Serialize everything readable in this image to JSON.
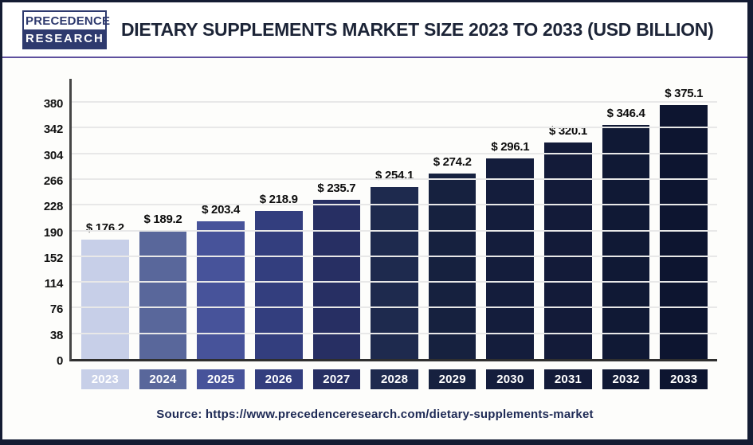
{
  "header": {
    "logo_line1": "PRECEDENCE",
    "logo_line2": "RESEARCH",
    "title": "DIETARY SUPPLEMENTS MARKET SIZE 2023 TO 2033 (USD BILLION)"
  },
  "footer": {
    "source": "Source: https://www.precedenceresearch.com/dietary-supplements-market"
  },
  "chart_data": {
    "type": "bar",
    "title": "Dietary Supplements Market Size 2023 to 2033 (USD Billion)",
    "categories": [
      "2023",
      "2024",
      "2025",
      "2026",
      "2027",
      "2028",
      "2029",
      "2030",
      "2031",
      "2032",
      "2033"
    ],
    "values": [
      176.2,
      189.2,
      203.4,
      218.9,
      235.7,
      254.1,
      274.2,
      296.1,
      320.1,
      346.4,
      375.1
    ],
    "value_labels": [
      "$ 176.2",
      "$ 189.2",
      "$ 203.4",
      "$ 218.9",
      "$ 235.7",
      "$ 254.1",
      "$ 274.2",
      "$ 296.1",
      "$ 320.1",
      "$ 346.4",
      "$ 375.1"
    ],
    "bar_colors": [
      "#c7cfe8",
      "#59679b",
      "#47539a",
      "#333e7e",
      "#272f63",
      "#1e2a4e",
      "#16213f",
      "#141d3c",
      "#131b39",
      "#101935",
      "#0d1530"
    ],
    "unit": "USD Billion",
    "y_ticks": [
      0,
      38,
      76,
      114,
      152,
      190,
      228,
      266,
      304,
      342,
      380
    ],
    "ylim": [
      0,
      380
    ],
    "xlabel": "",
    "ylabel": "",
    "grid": "horizontal",
    "legend": "none",
    "colors": {
      "frame_navy": "#141c33",
      "divider_purple": "#5e509e",
      "title_navy": "#1c2437",
      "source_navy": "#1e2a55",
      "axis_line": "#454545",
      "gridline": "#e8e8e8"
    }
  }
}
